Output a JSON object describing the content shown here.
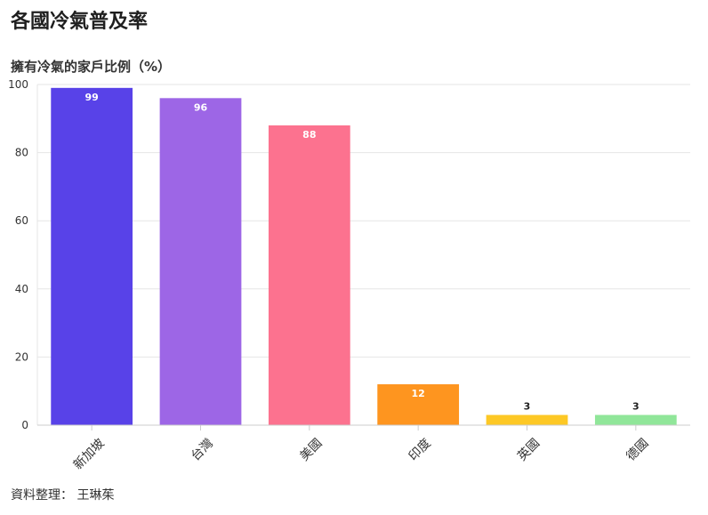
{
  "header": {
    "title": "各國冷氣普及率",
    "subtitle": "擁有冷氣的家戶比例（%）"
  },
  "footer": {
    "source": "資料整理： 王琳茱"
  },
  "chart_data": {
    "type": "bar",
    "title": "各國冷氣普及率",
    "subtitle": "擁有冷氣的家戶比例（%）",
    "categories": [
      "新加坡",
      "台灣",
      "美國",
      "印度",
      "英國",
      "德國"
    ],
    "values": [
      99,
      96,
      88,
      12,
      3,
      3
    ],
    "colors": [
      "#5842e8",
      "#9d66e6",
      "#fc728f",
      "#fe951f",
      "#fdc825",
      "#90e699"
    ],
    "label_colors": [
      "#ffffff",
      "#ffffff",
      "#ffffff",
      "#ffffff",
      "#222222",
      "#222222"
    ],
    "ylim": [
      0,
      100
    ],
    "yticks": [
      0,
      20,
      40,
      60,
      80,
      100
    ],
    "grid": true,
    "legend": "none",
    "xlabel": "",
    "ylabel": ""
  }
}
